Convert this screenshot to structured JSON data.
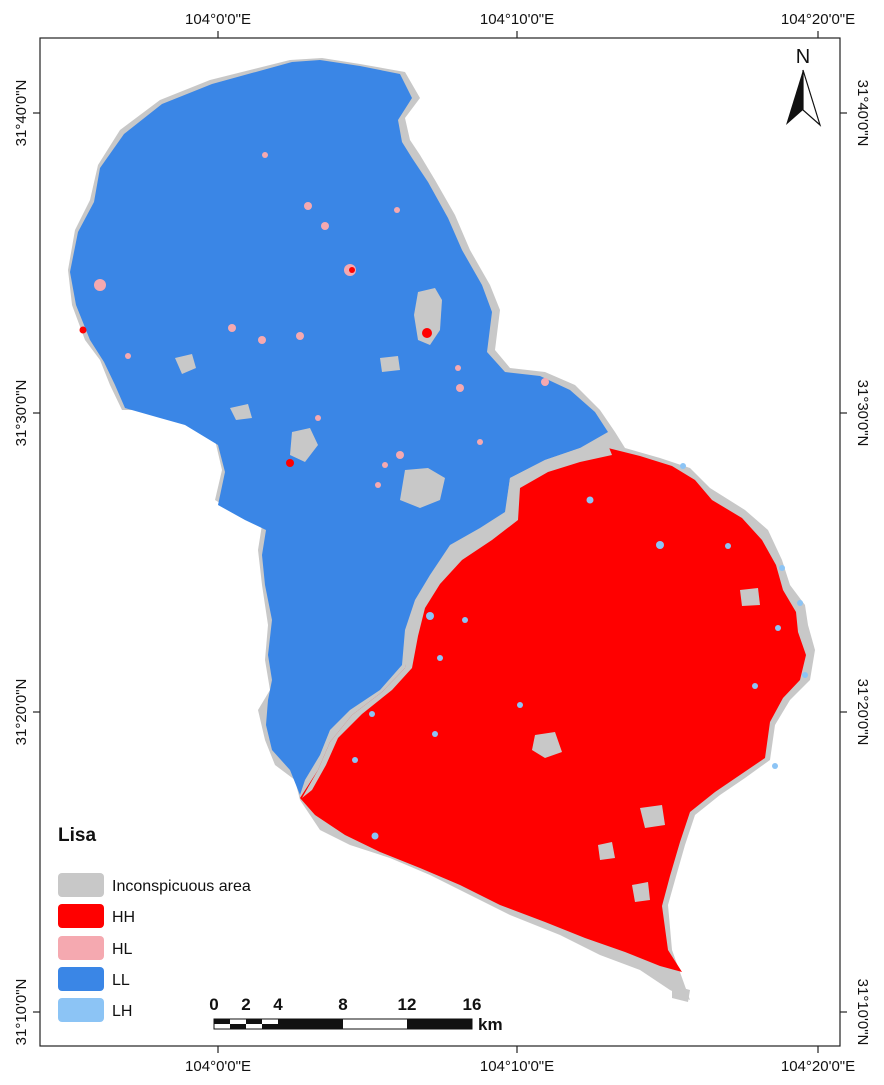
{
  "map": {
    "graticule": {
      "top": [
        "104°0'0\"E",
        "104°10'0\"E",
        "104°20'0\"E"
      ],
      "bottom": [
        "104°0'0\"E",
        "104°10'0\"E",
        "104°20'0\"E"
      ],
      "left": [
        "31°40'0\"N",
        "31°30'0\"N",
        "31°20'0\"N",
        "31°10'0\"N"
      ],
      "right": [
        "31°40'0\"N",
        "31°30'0\"N",
        "31°20'0\"N",
        "31°10'0\"N"
      ]
    },
    "north_arrow": {
      "label": "N"
    },
    "legend": {
      "title": "Lisa",
      "items": [
        {
          "label": "Inconspicuous area",
          "color": "#c8c8c8"
        },
        {
          "label": "HH",
          "color": "#ff0000"
        },
        {
          "label": "HL",
          "color": "#f5a9b0"
        },
        {
          "label": "LL",
          "color": "#3a86e6"
        },
        {
          "label": "LH",
          "color": "#8cc4f5"
        }
      ]
    },
    "scale_bar": {
      "labels": [
        "0",
        "2",
        "4",
        "8",
        "12",
        "16"
      ],
      "unit": "km"
    }
  }
}
